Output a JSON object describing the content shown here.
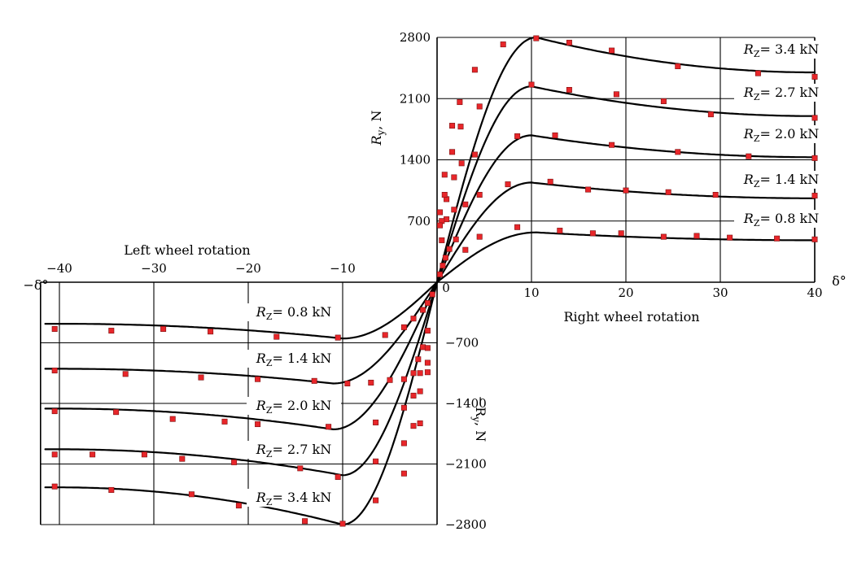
{
  "chart_data": {
    "type": "line",
    "title": "",
    "x_axis": {
      "label": "δ°",
      "right_label": "Right  wheel rotation",
      "left_label": "Left  wheel rotation",
      "xlim": [
        -42,
        40
      ],
      "tick_values": [
        -40,
        -30,
        -20,
        -10,
        0,
        10,
        20,
        30,
        40
      ],
      "tick_labels": [
        "−40",
        "−30",
        "−20",
        "−10",
        "0",
        "10",
        "20",
        "30",
        "40"
      ],
      "neg_end_label": "−δ°"
    },
    "y_axis": {
      "top_label_prefix": "R",
      "top_label_sub": "y",
      "top_label_suffix": ", N",
      "bottom_label": "−R",
      "bottom_label_sub": "y",
      "bottom_label_suffix": ", N",
      "ylim": [
        -2800,
        2800
      ],
      "tick_values": [
        2800,
        2100,
        1400,
        700,
        -700,
        -1400,
        -2100,
        -2800
      ],
      "tick_labels": [
        "2800",
        "2100",
        "1400",
        "700",
        "−700",
        "−1400",
        "−2100",
        "−2800"
      ]
    },
    "curve_label_prefix": "R",
    "curve_label_sub": "Z",
    "series": [
      {
        "name": "= 0.8 kN",
        "right_curve": {
          "peak": 570,
          "peak_at": 10.5,
          "end": 480
        },
        "left_curve": {
          "peak": -650,
          "peak_at": -10,
          "end": -480
        },
        "points": [
          [
            0.3,
            90
          ],
          [
            0.6,
            190
          ],
          [
            0.9,
            280
          ],
          [
            1.3,
            380
          ],
          [
            2,
            490
          ],
          [
            3,
            370
          ],
          [
            4.5,
            520
          ],
          [
            8.5,
            630
          ],
          [
            13,
            590
          ],
          [
            16.5,
            560
          ],
          [
            19.5,
            560
          ],
          [
            24,
            520
          ],
          [
            27.5,
            530
          ],
          [
            31,
            510
          ],
          [
            36,
            500
          ],
          [
            40,
            490
          ],
          [
            -0.5,
            -140
          ],
          [
            -1,
            -240
          ],
          [
            -1.5,
            -320
          ],
          [
            -2.5,
            -420
          ],
          [
            -3.5,
            -520
          ],
          [
            -5.5,
            -610
          ],
          [
            -10.5,
            -640
          ],
          [
            -17,
            -630
          ],
          [
            -24,
            -570
          ],
          [
            -29,
            -540
          ],
          [
            -34.5,
            -560
          ],
          [
            -40.5,
            -540
          ]
        ]
      },
      {
        "name": "= 1.4 kN",
        "right_curve": {
          "peak": 1140,
          "peak_at": 10,
          "end": 960
        },
        "left_curve": {
          "peak": -1170,
          "peak_at": -11,
          "end": -1000
        },
        "points": [
          [
            0.5,
            480
          ],
          [
            1,
            720
          ],
          [
            1.8,
            830
          ],
          [
            3,
            890
          ],
          [
            4.5,
            1000
          ],
          [
            7.5,
            1120
          ],
          [
            12,
            1150
          ],
          [
            16,
            1060
          ],
          [
            20,
            1050
          ],
          [
            24.5,
            1030
          ],
          [
            29.5,
            1000
          ],
          [
            40,
            990
          ],
          [
            -1,
            -560
          ],
          [
            -1.5,
            -750
          ],
          [
            -2,
            -890
          ],
          [
            -2.5,
            -1050
          ],
          [
            -3.5,
            -1120
          ],
          [
            -5,
            -1130
          ],
          [
            -7,
            -1160
          ],
          [
            -9.5,
            -1170
          ],
          [
            -13,
            -1140
          ],
          [
            -19,
            -1120
          ],
          [
            -25,
            -1100
          ],
          [
            -33,
            -1060
          ],
          [
            -40.5,
            -1020
          ]
        ]
      },
      {
        "name": "= 2.0 kN",
        "right_curve": {
          "peak": 1680,
          "peak_at": 10,
          "end": 1430
        },
        "left_curve": {
          "peak": -1700,
          "peak_at": -11,
          "end": -1460
        },
        "points": [
          [
            0.5,
            700
          ],
          [
            1,
            950
          ],
          [
            1.8,
            1200
          ],
          [
            2.6,
            1360
          ],
          [
            4,
            1460
          ],
          [
            8.5,
            1670
          ],
          [
            12.5,
            1680
          ],
          [
            18.5,
            1570
          ],
          [
            25.5,
            1490
          ],
          [
            33,
            1440
          ],
          [
            40,
            1420
          ],
          [
            -1,
            -760
          ],
          [
            -1.8,
            -1050
          ],
          [
            -2.5,
            -1310
          ],
          [
            -3.5,
            -1450
          ],
          [
            -6.5,
            -1620
          ],
          [
            -11.5,
            -1670
          ],
          [
            -19,
            -1640
          ],
          [
            -22.5,
            -1610
          ],
          [
            -28,
            -1580
          ],
          [
            -34,
            -1500
          ],
          [
            -40.5,
            -1490
          ]
        ]
      },
      {
        "name": "= 2.7 kN",
        "right_curve": {
          "peak": 2240,
          "peak_at": 10,
          "end": 1900
        },
        "left_curve": {
          "peak": -2230,
          "peak_at": -10,
          "end": -1930
        },
        "points": [
          [
            0.3,
            650
          ],
          [
            0.8,
            1000
          ],
          [
            1.6,
            1490
          ],
          [
            2.5,
            1780
          ],
          [
            4.5,
            2010
          ],
          [
            10,
            2260
          ],
          [
            14,
            2200
          ],
          [
            19,
            2150
          ],
          [
            24,
            2070
          ],
          [
            29,
            1920
          ],
          [
            40,
            1880
          ],
          [
            -1,
            -930
          ],
          [
            -1.8,
            -1260
          ],
          [
            -2.5,
            -1660
          ],
          [
            -3.5,
            -1860
          ],
          [
            -6.5,
            -2070
          ],
          [
            -10.5,
            -2250
          ],
          [
            -14.5,
            -2150
          ],
          [
            -21.5,
            -2080
          ],
          [
            -27,
            -2040
          ],
          [
            -31,
            -1990
          ],
          [
            -36.5,
            -1990
          ],
          [
            -40.5,
            -1990
          ]
        ]
      },
      {
        "name": "= 3.4 kN",
        "right_curve": {
          "peak": 2800,
          "peak_at": 10.5,
          "end": 2400
        },
        "left_curve": {
          "peak": -2800,
          "peak_at": -10,
          "end": -2370
        },
        "points": [
          [
            0.3,
            800
          ],
          [
            0.8,
            1230
          ],
          [
            1.6,
            1790
          ],
          [
            2.4,
            2060
          ],
          [
            4,
            2430
          ],
          [
            7,
            2720
          ],
          [
            10.5,
            2790
          ],
          [
            14,
            2740
          ],
          [
            18.5,
            2650
          ],
          [
            25.5,
            2470
          ],
          [
            34,
            2390
          ],
          [
            40,
            2350
          ],
          [
            -1,
            -1040
          ],
          [
            -1.8,
            -1630
          ],
          [
            -3.5,
            -2210
          ],
          [
            -6.5,
            -2520
          ],
          [
            -10,
            -2790
          ],
          [
            -14,
            -2760
          ],
          [
            -21,
            -2580
          ],
          [
            -26,
            -2450
          ],
          [
            -34.5,
            -2400
          ],
          [
            -40.5,
            -2360
          ]
        ]
      }
    ]
  }
}
